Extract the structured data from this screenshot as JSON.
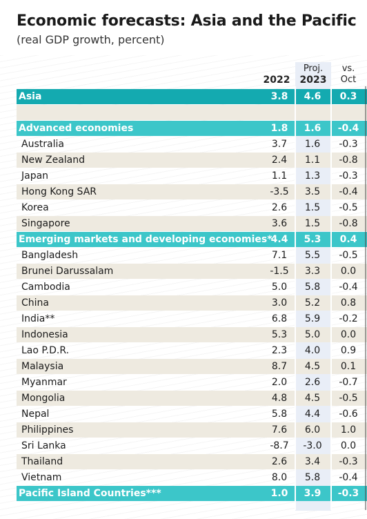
{
  "title": "Economic forecasts: Asia and the Pacific",
  "subtitle": "(real GDP growth, percent)",
  "headers": {
    "c1": "2022",
    "c2_top": "Proj.",
    "c2": "2023",
    "c3_top": "vs.",
    "c3": "Oct"
  },
  "colors": {
    "teal": "#3cc6c9",
    "teal_dark": "#14aab0",
    "shade": "#eeeae0",
    "proj_col": "#e9eef7"
  },
  "chart_data": {
    "type": "table",
    "columns": [
      "2022",
      "Proj. 2023",
      "vs. Oct"
    ],
    "rows": [
      {
        "name": "Asia",
        "values": [
          "3.8",
          "4.6",
          "0.3"
        ],
        "style": "header-dark"
      },
      {
        "name": "Advanced economies",
        "values": [
          "1.8",
          "1.6",
          "-0.4"
        ],
        "style": "header"
      },
      {
        "name": "Australia",
        "values": [
          "3.7",
          "1.6",
          "-0.3"
        ],
        "style": "plain"
      },
      {
        "name": "New Zealand",
        "values": [
          "2.4",
          "1.1",
          "-0.8"
        ],
        "style": "shade"
      },
      {
        "name": "Japan",
        "values": [
          "1.1",
          "1.3",
          "-0.3"
        ],
        "style": "plain"
      },
      {
        "name": "Hong Kong SAR",
        "values": [
          "-3.5",
          "3.5",
          "-0.4"
        ],
        "style": "shade"
      },
      {
        "name": "Korea",
        "values": [
          "2.6",
          "1.5",
          "-0.5"
        ],
        "style": "plain"
      },
      {
        "name": "Singapore",
        "values": [
          "3.6",
          "1.5",
          "-0.8"
        ],
        "style": "shade"
      },
      {
        "name": "Emerging markets and developing economies*",
        "values": [
          "4.4",
          "5.3",
          "0.4"
        ],
        "style": "header"
      },
      {
        "name": "Bangladesh",
        "values": [
          "7.1",
          "5.5",
          "-0.5"
        ],
        "style": "plain"
      },
      {
        "name": "Brunei Darussalam",
        "values": [
          "-1.5",
          "3.3",
          "0.0"
        ],
        "style": "shade"
      },
      {
        "name": "Cambodia",
        "values": [
          "5.0",
          "5.8",
          "-0.4"
        ],
        "style": "plain"
      },
      {
        "name": "China",
        "values": [
          "3.0",
          "5.2",
          "0.8"
        ],
        "style": "shade"
      },
      {
        "name": "India**",
        "values": [
          "6.8",
          "5.9",
          "-0.2"
        ],
        "style": "plain"
      },
      {
        "name": "Indonesia",
        "values": [
          "5.3",
          "5.0",
          "0.0"
        ],
        "style": "shade"
      },
      {
        "name": "Lao P.D.R.",
        "values": [
          "2.3",
          "4.0",
          "0.9"
        ],
        "style": "plain"
      },
      {
        "name": "Malaysia",
        "values": [
          "8.7",
          "4.5",
          "0.1"
        ],
        "style": "shade"
      },
      {
        "name": "Myanmar",
        "values": [
          "2.0",
          "2.6",
          "-0.7"
        ],
        "style": "plain"
      },
      {
        "name": "Mongolia",
        "values": [
          "4.8",
          "4.5",
          "-0.5"
        ],
        "style": "shade"
      },
      {
        "name": "Nepal",
        "values": [
          "5.8",
          "4.4",
          "-0.6"
        ],
        "style": "plain"
      },
      {
        "name": "Philippines",
        "values": [
          "7.6",
          "6.0",
          "1.0"
        ],
        "style": "shade"
      },
      {
        "name": "Sri Lanka",
        "values": [
          "-8.7",
          "-3.0",
          "0.0"
        ],
        "style": "plain"
      },
      {
        "name": "Thailand",
        "values": [
          "2.6",
          "3.4",
          "-0.3"
        ],
        "style": "shade"
      },
      {
        "name": "Vietnam",
        "values": [
          "8.0",
          "5.8",
          "-0.4"
        ],
        "style": "plain"
      },
      {
        "name": "Pacific Island Countries***",
        "values": [
          "1.0",
          "3.9",
          "-0.3"
        ],
        "style": "header"
      }
    ]
  }
}
